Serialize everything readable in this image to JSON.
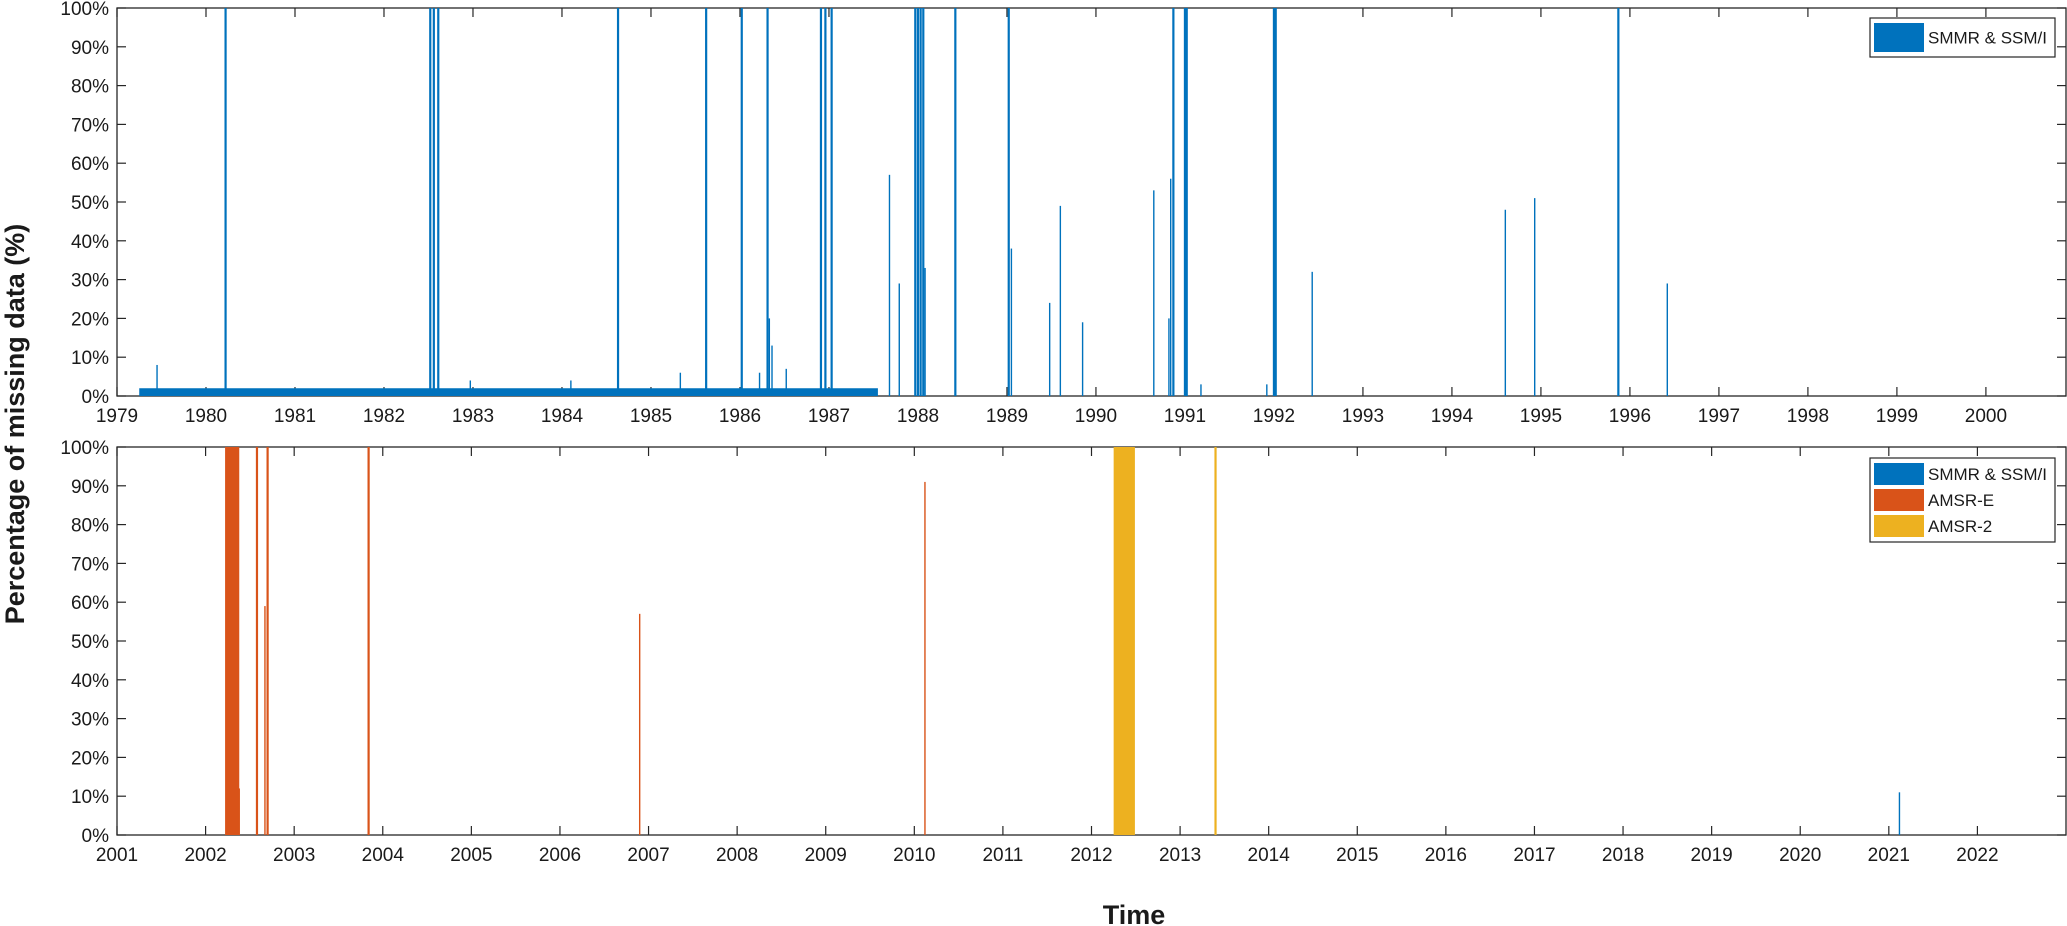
{
  "figure": {
    "ylabel": "Percentage of missing data (%)",
    "xlabel": "Time"
  },
  "colors": {
    "smmr_ssmi": "#0072BD",
    "amsr_e": "#D95319",
    "amsr_2": "#EDB120"
  },
  "chart_data": [
    {
      "type": "bar",
      "xlabel": "",
      "ylabel": "",
      "xlim": [
        1979.0,
        2000.9
      ],
      "ylim": [
        0,
        100
      ],
      "grid": false,
      "legend_position": "top-right",
      "x_ticks": [
        "1979",
        "1980",
        "1981",
        "1982",
        "1983",
        "1984",
        "1985",
        "1986",
        "1987",
        "1988",
        "1989",
        "1990",
        "1991",
        "1992",
        "1993",
        "1994",
        "1995",
        "1996",
        "1997",
        "1998",
        "1999",
        "2000"
      ],
      "y_ticks": [
        "0%",
        "10%",
        "20%",
        "30%",
        "40%",
        "50%",
        "60%",
        "70%",
        "80%",
        "90%",
        "100%"
      ],
      "baseline": {
        "series": "SMMR & SSM/I",
        "x_start": 1979.25,
        "x_end": 1987.55,
        "value": 2
      },
      "series": [
        {
          "name": "SMMR & SSM/I",
          "color": "#0072BD",
          "points": [
            {
              "x": 1979.45,
              "y": 8
            },
            {
              "x": 1980.22,
              "y": 100
            },
            {
              "x": 1982.52,
              "y": 100
            },
            {
              "x": 1982.56,
              "y": 100
            },
            {
              "x": 1982.61,
              "y": 100
            },
            {
              "x": 1982.97,
              "y": 4
            },
            {
              "x": 1984.1,
              "y": 4
            },
            {
              "x": 1984.63,
              "y": 100
            },
            {
              "x": 1985.33,
              "y": 6
            },
            {
              "x": 1985.62,
              "y": 100
            },
            {
              "x": 1986.02,
              "y": 100
            },
            {
              "x": 1986.22,
              "y": 6
            },
            {
              "x": 1986.31,
              "y": 100
            },
            {
              "x": 1986.33,
              "y": 20
            },
            {
              "x": 1986.36,
              "y": 13
            },
            {
              "x": 1986.52,
              "y": 7
            },
            {
              "x": 1986.91,
              "y": 100
            },
            {
              "x": 1986.96,
              "y": 100
            },
            {
              "x": 1987.03,
              "y": 100
            },
            {
              "x": 1987.68,
              "y": 57
            },
            {
              "x": 1987.79,
              "y": 29
            },
            {
              "x": 1987.97,
              "y": 100
            },
            {
              "x": 1988.0,
              "y": 100
            },
            {
              "x": 1988.03,
              "y": 100
            },
            {
              "x": 1988.06,
              "y": 100
            },
            {
              "x": 1988.08,
              "y": 33
            },
            {
              "x": 1988.42,
              "y": 100
            },
            {
              "x": 1989.02,
              "y": 100
            },
            {
              "x": 1989.05,
              "y": 38
            },
            {
              "x": 1989.48,
              "y": 24
            },
            {
              "x": 1989.6,
              "y": 49
            },
            {
              "x": 1989.85,
              "y": 19
            },
            {
              "x": 1990.65,
              "y": 53
            },
            {
              "x": 1990.82,
              "y": 20
            },
            {
              "x": 1990.84,
              "y": 56
            },
            {
              "x": 1990.87,
              "y": 100
            },
            {
              "x": 1991.0,
              "y": 100
            },
            {
              "x": 1991.02,
              "y": 100
            },
            {
              "x": 1991.18,
              "y": 3
            },
            {
              "x": 1991.92,
              "y": 3
            },
            {
              "x": 1992.0,
              "y": 100
            },
            {
              "x": 1992.02,
              "y": 100
            },
            {
              "x": 1992.43,
              "y": 32
            },
            {
              "x": 1994.6,
              "y": 48
            },
            {
              "x": 1994.93,
              "y": 51
            },
            {
              "x": 1995.87,
              "y": 100
            },
            {
              "x": 1996.42,
              "y": 29
            }
          ]
        }
      ]
    },
    {
      "type": "bar",
      "xlabel": "",
      "ylabel": "",
      "xlim": [
        2001.0,
        2023.0
      ],
      "ylim": [
        0,
        100
      ],
      "grid": false,
      "legend_position": "top-right",
      "x_ticks": [
        "2001",
        "2002",
        "2003",
        "2004",
        "2005",
        "2006",
        "2007",
        "2008",
        "2009",
        "2010",
        "2011",
        "2012",
        "2013",
        "2014",
        "2015",
        "2016",
        "2017",
        "2018",
        "2019",
        "2020",
        "2021",
        "2022"
      ],
      "y_ticks": [
        "0%",
        "10%",
        "20%",
        "30%",
        "40%",
        "50%",
        "60%",
        "70%",
        "80%",
        "90%",
        "100%"
      ],
      "series": [
        {
          "name": "SMMR & SSM/I",
          "color": "#0072BD",
          "points": [
            {
              "x": 2021.12,
              "y": 11
            }
          ]
        },
        {
          "name": "AMSR-E",
          "color": "#D95319",
          "blocks": [
            {
              "x_start": 2002.22,
              "x_end": 2002.38,
              "y": 100
            }
          ],
          "points": [
            {
              "x": 2002.38,
              "y": 12
            },
            {
              "x": 2002.58,
              "y": 100
            },
            {
              "x": 2002.67,
              "y": 59
            },
            {
              "x": 2002.7,
              "y": 100
            },
            {
              "x": 2003.84,
              "y": 100
            },
            {
              "x": 2006.9,
              "y": 57
            },
            {
              "x": 2010.12,
              "y": 91
            }
          ]
        },
        {
          "name": "AMSR-2",
          "color": "#EDB120",
          "blocks": [
            {
              "x_start": 2012.25,
              "x_end": 2012.49,
              "y": 100
            }
          ],
          "points": [
            {
              "x": 2013.4,
              "y": 100
            }
          ]
        }
      ]
    }
  ]
}
